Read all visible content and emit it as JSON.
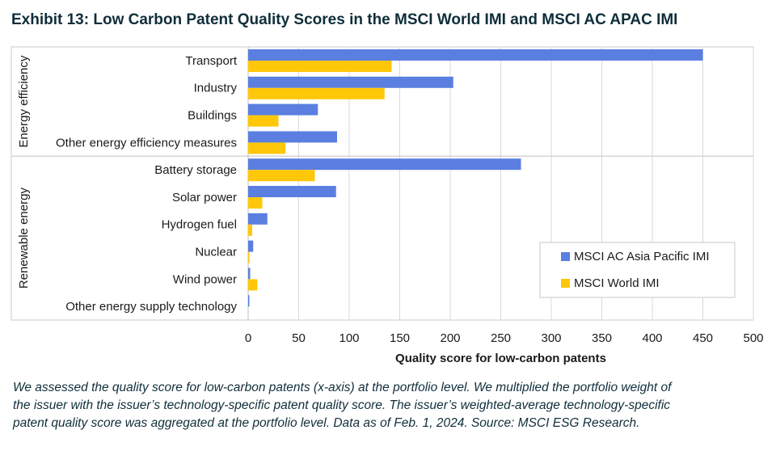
{
  "title": "Exhibit 13: Low Carbon Patent Quality Scores in the MSCI World IMI and MSCI AC APAC IMI",
  "chart_data": {
    "type": "bar",
    "orientation": "horizontal",
    "groups": [
      {
        "name": "Energy efficiency",
        "categories": [
          "Transport",
          "Industry",
          "Buildings",
          "Other energy efficiency measures"
        ]
      },
      {
        "name": "Renewable energy",
        "categories": [
          "Battery storage",
          "Solar power",
          "Hydrogen fuel",
          "Nuclear",
          "Wind power",
          "Other energy supply technology"
        ]
      }
    ],
    "categories": [
      "Transport",
      "Industry",
      "Buildings",
      "Other energy efficiency measures",
      "Battery storage",
      "Solar power",
      "Hydrogen fuel",
      "Nuclear",
      "Wind power",
      "Other energy supply technology"
    ],
    "series": [
      {
        "name": "MSCI AC Asia Pacific IMI",
        "color": "#5b7fe0",
        "values": [
          450,
          203,
          69,
          88,
          270,
          87,
          19,
          5,
          2,
          1
        ]
      },
      {
        "name": "MSCI World IMI",
        "color": "#ffc709",
        "values": [
          142,
          135,
          30,
          37,
          66,
          14,
          4,
          1,
          9,
          0
        ]
      }
    ],
    "xlabel": "Quality score for low-carbon patents",
    "ylabel": "",
    "xlim": [
      0,
      500
    ],
    "xticks": [
      "0",
      "50",
      "100",
      "150",
      "200",
      "250",
      "300",
      "350",
      "400",
      "450",
      "500"
    ],
    "grid": "vertical",
    "legend": "bottom-right"
  },
  "footnote": [
    "We assessed the quality score for low-carbon patents (x-axis) at the portfolio level. We multiplied the portfolio weight of",
    "the issuer with the issuer’s technology-specific patent quality score. The issuer’s weighted-average technology-specific",
    "patent quality score was aggregated at the portfolio level. Data as of Feb. 1, 2024. Source: MSCI ESG Research."
  ]
}
